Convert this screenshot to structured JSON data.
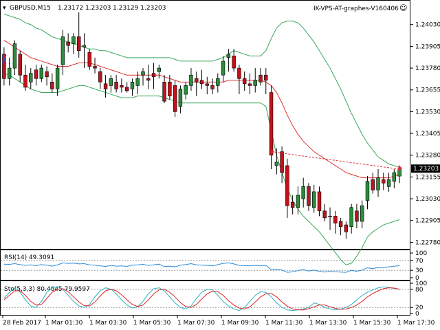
{
  "header": {
    "symbol_timeframe": "GBPUSD,M15",
    "ohlc": "1.23172 1.23203 1.23129 1.23203",
    "indicator_name": "IK-VPS-AT-graphes-V160406",
    "smiley_icon": "☺"
  },
  "colors": {
    "bull": "#2e8b3d",
    "bear": "#c0121c",
    "ma": "#e03030",
    "bands": "#3aa65a",
    "rsi": "#2a8ad8",
    "sto_main": "#2ab0c0",
    "sto_signal": "#e02020",
    "axis": "#000000",
    "arrow": "#e0303a"
  },
  "chart_data": [
    {
      "type": "candlestick",
      "title": "GBPUSD,M15",
      "y_ticks": [
        "1.24030",
        "1.23905",
        "1.23780",
        "1.23655",
        "1.23530",
        "1.23405",
        "1.23280",
        "1.23155",
        "1.23030",
        "1.22905",
        "1.22780"
      ],
      "current_price_label": "1.23203",
      "ylim": [
        1.2275,
        1.241
      ],
      "x_ticks": [
        "28 Feb 2017",
        "1 Mar 01:30",
        "1 Mar 03:30",
        "1 Mar 05:30",
        "1 Mar 07:30",
        "1 Mar 09:30",
        "1 Mar 11:30",
        "1 Mar 13:30",
        "1 Mar 15:30",
        "1 Mar 17:30"
      ],
      "ohlc": [
        [
          1.2386,
          1.239,
          1.2368,
          1.2372
        ],
        [
          1.2372,
          1.2384,
          1.2368,
          1.2378
        ],
        [
          1.2378,
          1.2394,
          1.2374,
          1.2392
        ],
        [
          1.2386,
          1.2388,
          1.237,
          1.2374
        ],
        [
          1.2374,
          1.238,
          1.2365,
          1.2367
        ],
        [
          1.237,
          1.2378,
          1.2366,
          1.2375
        ],
        [
          1.2377,
          1.238,
          1.2368,
          1.2372
        ],
        [
          1.2372,
          1.238,
          1.237,
          1.2378
        ],
        [
          1.2376,
          1.2379,
          1.2368,
          1.2373
        ],
        [
          1.237,
          1.2375,
          1.2364,
          1.2366
        ],
        [
          1.2366,
          1.238,
          1.2362,
          1.2378
        ],
        [
          1.238,
          1.24,
          1.2374,
          1.2396
        ],
        [
          1.2393,
          1.2398,
          1.2387,
          1.2391
        ],
        [
          1.2392,
          1.2398,
          1.2386,
          1.2396
        ],
        [
          1.2396,
          1.241,
          1.2384,
          1.2388
        ],
        [
          1.239,
          1.2398,
          1.2378,
          1.2391
        ],
        [
          1.2387,
          1.2389,
          1.2377,
          1.2379
        ],
        [
          1.2379,
          1.2384,
          1.2375,
          1.2378
        ],
        [
          1.2376,
          1.2378,
          1.2366,
          1.237
        ],
        [
          1.2369,
          1.2374,
          1.2361,
          1.2366
        ],
        [
          1.2368,
          1.2374,
          1.2364,
          1.2372
        ],
        [
          1.237,
          1.2374,
          1.2364,
          1.2366
        ],
        [
          1.2368,
          1.2372,
          1.2364,
          1.2367
        ],
        [
          1.2367,
          1.237,
          1.2364,
          1.2365
        ],
        [
          1.2366,
          1.2372,
          1.2362,
          1.237
        ],
        [
          1.2368,
          1.2376,
          1.2363,
          1.2372
        ],
        [
          1.2374,
          1.2378,
          1.2368,
          1.2376
        ],
        [
          1.2372,
          1.238,
          1.2366,
          1.2371
        ],
        [
          1.2375,
          1.2381,
          1.2366,
          1.2373
        ],
        [
          1.2376,
          1.238,
          1.2372,
          1.2378
        ],
        [
          1.237,
          1.2374,
          1.2358,
          1.2359
        ],
        [
          1.237,
          1.2374,
          1.236,
          1.2362
        ],
        [
          1.2368,
          1.2371,
          1.235,
          1.2353
        ],
        [
          1.2356,
          1.2368,
          1.2352,
          1.2366
        ],
        [
          1.2363,
          1.237,
          1.236,
          1.2368
        ],
        [
          1.2368,
          1.2378,
          1.2365,
          1.2374
        ],
        [
          1.2372,
          1.2376,
          1.2362,
          1.237
        ],
        [
          1.2371,
          1.2377,
          1.2366,
          1.2369
        ],
        [
          1.2369,
          1.2373,
          1.2363,
          1.2368
        ],
        [
          1.2368,
          1.2372,
          1.2363,
          1.2366
        ],
        [
          1.2368,
          1.2375,
          1.2364,
          1.2372
        ],
        [
          1.2374,
          1.2385,
          1.237,
          1.2382
        ],
        [
          1.2384,
          1.2389,
          1.2376,
          1.2386
        ],
        [
          1.2385,
          1.2389,
          1.2376,
          1.2378
        ],
        [
          1.2378,
          1.238,
          1.2363,
          1.2372
        ],
        [
          1.2372,
          1.2376,
          1.2365,
          1.2369
        ],
        [
          1.2369,
          1.2375,
          1.2363,
          1.2368
        ],
        [
          1.2368,
          1.2378,
          1.2364,
          1.2371
        ],
        [
          1.2374,
          1.2378,
          1.2368,
          1.237
        ],
        [
          1.2374,
          1.2378,
          1.2363,
          1.2371
        ],
        [
          1.2364,
          1.2368,
          1.232,
          1.2328
        ],
        [
          1.2322,
          1.2332,
          1.2317,
          1.2324
        ],
        [
          1.233,
          1.2333,
          1.2312,
          1.2318
        ],
        [
          1.2322,
          1.2326,
          1.2292,
          1.2299
        ],
        [
          1.2301,
          1.2305,
          1.2294,
          1.2298
        ],
        [
          1.2298,
          1.231,
          1.2294,
          1.2305
        ],
        [
          1.2303,
          1.2315,
          1.2298,
          1.231
        ],
        [
          1.231,
          1.2312,
          1.2296,
          1.2299
        ],
        [
          1.2298,
          1.2311,
          1.2295,
          1.2307
        ],
        [
          1.2307,
          1.231,
          1.2293,
          1.2296
        ],
        [
          1.2296,
          1.23,
          1.229,
          1.2292
        ],
        [
          1.2293,
          1.2298,
          1.2285,
          1.2293
        ],
        [
          1.2293,
          1.2296,
          1.2283,
          1.2289
        ],
        [
          1.229,
          1.2292,
          1.2282,
          1.2287
        ],
        [
          1.2288,
          1.229,
          1.228,
          1.2284
        ],
        [
          1.2287,
          1.23,
          1.2283,
          1.2298
        ],
        [
          1.2296,
          1.23,
          1.2286,
          1.229
        ],
        [
          1.229,
          1.2302,
          1.2286,
          1.2299
        ],
        [
          1.2302,
          1.2316,
          1.2297,
          1.2313
        ],
        [
          1.2314,
          1.2318,
          1.2306,
          1.2308
        ],
        [
          1.2308,
          1.232,
          1.2304,
          1.2315
        ],
        [
          1.2314,
          1.2318,
          1.2308,
          1.2312
        ],
        [
          1.231,
          1.2318,
          1.2307,
          1.2314
        ],
        [
          1.2313,
          1.232,
          1.2309,
          1.2318
        ],
        [
          1.2316,
          1.232,
          1.2312,
          1.232
        ]
      ],
      "ma": [
        1.2394,
        1.2392,
        1.239,
        1.2388,
        1.2386,
        1.2384,
        1.2383,
        1.2382,
        1.2381,
        1.238,
        1.2379,
        1.2379,
        1.2379,
        1.238,
        1.2381,
        1.2381,
        1.2381,
        1.238,
        1.2379,
        1.2378,
        1.2377,
        1.2376,
        1.2375,
        1.2374,
        1.2374,
        1.2374,
        1.2374,
        1.2374,
        1.2374,
        1.2374,
        1.2373,
        1.2372,
        1.2371,
        1.237,
        1.237,
        1.237,
        1.237,
        1.237,
        1.237,
        1.237,
        1.237,
        1.237,
        1.2371,
        1.2371,
        1.2371,
        1.2371,
        1.2371,
        1.2371,
        1.2371,
        1.237,
        1.2368,
        1.2364,
        1.2358,
        1.2351,
        1.2345,
        1.234,
        1.2336,
        1.2333,
        1.233,
        1.2328,
        1.2326,
        1.2324,
        1.2322,
        1.232,
        1.2318,
        1.2317,
        1.2316,
        1.2315,
        1.2315,
        1.2315,
        1.2315,
        1.2315,
        1.2315,
        1.2316,
        1.2317
      ],
      "band_upper": [
        1.2409,
        1.2408,
        1.2407,
        1.2406,
        1.2404,
        1.2403,
        1.2401,
        1.24,
        1.2398,
        1.2396,
        1.2395,
        1.2394,
        1.2393,
        1.2392,
        1.2391,
        1.239,
        1.2389,
        1.2389,
        1.2388,
        1.2388,
        1.2387,
        1.2386,
        1.2385,
        1.2384,
        1.2384,
        1.2384,
        1.2384,
        1.2384,
        1.2384,
        1.2384,
        1.2384,
        1.2384,
        1.2383,
        1.2382,
        1.2382,
        1.2382,
        1.2382,
        1.2382,
        1.2382,
        1.2382,
        1.2383,
        1.2384,
        1.2386,
        1.2388,
        1.2387,
        1.2386,
        1.2385,
        1.2385,
        1.2385,
        1.2388,
        1.2395,
        1.2401,
        1.2404,
        1.2405,
        1.2405,
        1.2404,
        1.2401,
        1.2397,
        1.2393,
        1.2388,
        1.2383,
        1.2378,
        1.2372,
        1.2366,
        1.2359,
        1.2352,
        1.2346,
        1.234,
        1.2335,
        1.2331,
        1.2327,
        1.2325,
        1.2323,
        1.2322,
        1.2321
      ],
      "band_lower": [
        1.2375,
        1.2374,
        1.2372,
        1.237,
        1.2368,
        1.2366,
        1.2365,
        1.2364,
        1.2364,
        1.2364,
        1.2364,
        1.2365,
        1.2366,
        1.2367,
        1.2368,
        1.2368,
        1.2367,
        1.2366,
        1.2365,
        1.2364,
        1.2363,
        1.2362,
        1.2361,
        1.2361,
        1.2361,
        1.2362,
        1.2362,
        1.2362,
        1.2362,
        1.2362,
        1.2361,
        1.236,
        1.2359,
        1.2358,
        1.2358,
        1.2358,
        1.2358,
        1.2358,
        1.2358,
        1.2358,
        1.2358,
        1.2358,
        1.2358,
        1.2358,
        1.2358,
        1.2358,
        1.2358,
        1.2358,
        1.2358,
        1.2356,
        1.2342,
        1.2328,
        1.2318,
        1.2309,
        1.2302,
        1.2297,
        1.2293,
        1.229,
        1.2287,
        1.2284,
        1.228,
        1.2276,
        1.2272,
        1.2268,
        1.2265,
        1.2266,
        1.227,
        1.2275,
        1.2281,
        1.2284,
        1.2286,
        1.2288,
        1.2289,
        1.229,
        1.2291
      ],
      "arrow_line": {
        "from_index": 50,
        "from_value": 1.233,
        "to_index": 74,
        "to_value": 1.232
      }
    },
    {
      "type": "line",
      "title": "RSI(14) 49.3091",
      "y_ticks": [
        "100",
        "70",
        "30",
        "0"
      ],
      "ylim": [
        0,
        100
      ],
      "levels": [
        70,
        30
      ],
      "values": [
        55,
        54,
        57,
        53,
        50,
        52,
        49,
        53,
        51,
        47,
        52,
        60,
        58,
        59,
        56,
        57,
        52,
        51,
        48,
        46,
        50,
        47,
        48,
        46,
        51,
        52,
        54,
        50,
        52,
        55,
        45,
        47,
        44,
        51,
        53,
        57,
        52,
        51,
        50,
        48,
        53,
        58,
        60,
        56,
        50,
        49,
        48,
        50,
        48,
        50,
        33,
        35,
        31,
        22,
        24,
        29,
        33,
        27,
        31,
        26,
        23,
        26,
        24,
        23,
        22,
        30,
        26,
        31,
        40,
        37,
        42,
        41,
        44,
        47,
        49
      ]
    },
    {
      "type": "line",
      "title": "Sto(5,3,3) 80.4645 79.9597",
      "y_ticks": [
        "100",
        "80",
        "20",
        "0"
      ],
      "ylim": [
        0,
        100
      ],
      "levels": [
        80,
        20
      ],
      "series": [
        {
          "values": [
            50,
            70,
            85,
            70,
            45,
            25,
            20,
            40,
            70,
            85,
            88,
            80,
            60,
            40,
            25,
            20,
            30,
            55,
            75,
            85,
            80,
            65,
            45,
            28,
            18,
            22,
            40,
            65,
            82,
            85,
            75,
            55,
            35,
            20,
            15,
            25,
            50,
            70,
            80,
            78,
            60,
            40,
            25,
            15,
            10,
            20,
            40,
            60,
            72,
            70,
            55,
            35,
            20,
            12,
            10,
            12,
            15,
            20,
            35,
            30,
            20,
            15,
            12,
            15,
            20,
            30,
            45,
            60,
            70,
            78,
            85,
            88,
            86,
            83,
            80
          ]
        },
        {
          "values": [
            45,
            60,
            75,
            75,
            60,
            40,
            28,
            30,
            50,
            70,
            80,
            82,
            72,
            55,
            38,
            26,
            25,
            38,
            58,
            75,
            80,
            75,
            62,
            45,
            30,
            23,
            28,
            45,
            65,
            78,
            80,
            70,
            55,
            36,
            23,
            20,
            30,
            48,
            65,
            74,
            72,
            60,
            42,
            28,
            18,
            15,
            22,
            38,
            55,
            65,
            66,
            55,
            38,
            24,
            15,
            12,
            12,
            16,
            22,
            28,
            28,
            22,
            17,
            14,
            15,
            20,
            28,
            40,
            55,
            66,
            75,
            82,
            85,
            84,
            80
          ]
        }
      ]
    }
  ]
}
